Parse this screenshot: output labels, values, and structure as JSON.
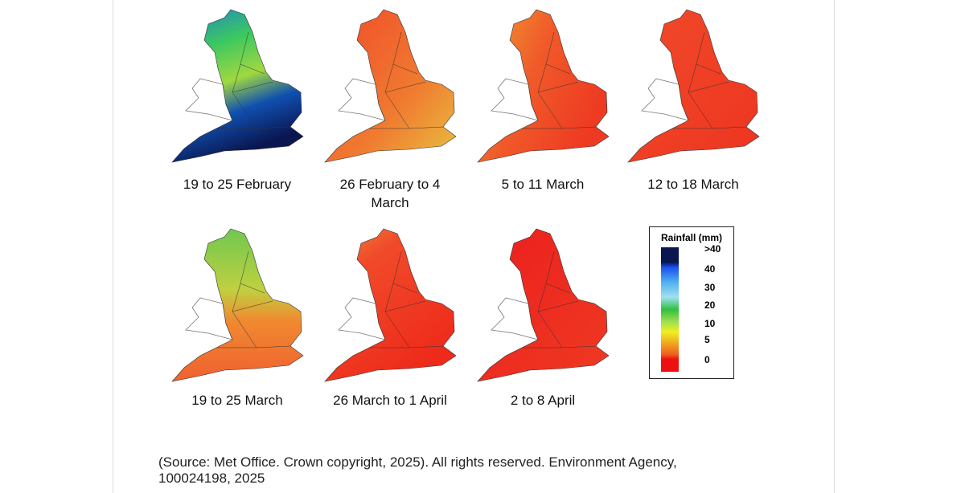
{
  "panels": [
    {
      "label": "19 to 25 February"
    },
    {
      "label": "26 February to 4 March"
    },
    {
      "label": "5 to 11 March"
    },
    {
      "label": "12 to 18 March"
    },
    {
      "label": "19 to 25 March"
    },
    {
      "label": "26 March to 1 April"
    },
    {
      "label": "2 to 8 April"
    }
  ],
  "legend": {
    "title": "Rainfall (mm)",
    "labels": [
      ">40",
      "40",
      "30",
      "20",
      "10",
      "5",
      "0"
    ]
  },
  "source": "(Source: Met Office. Crown copyright, 2025). All rights reserved. Environment Agency, 100024198, 2025"
}
